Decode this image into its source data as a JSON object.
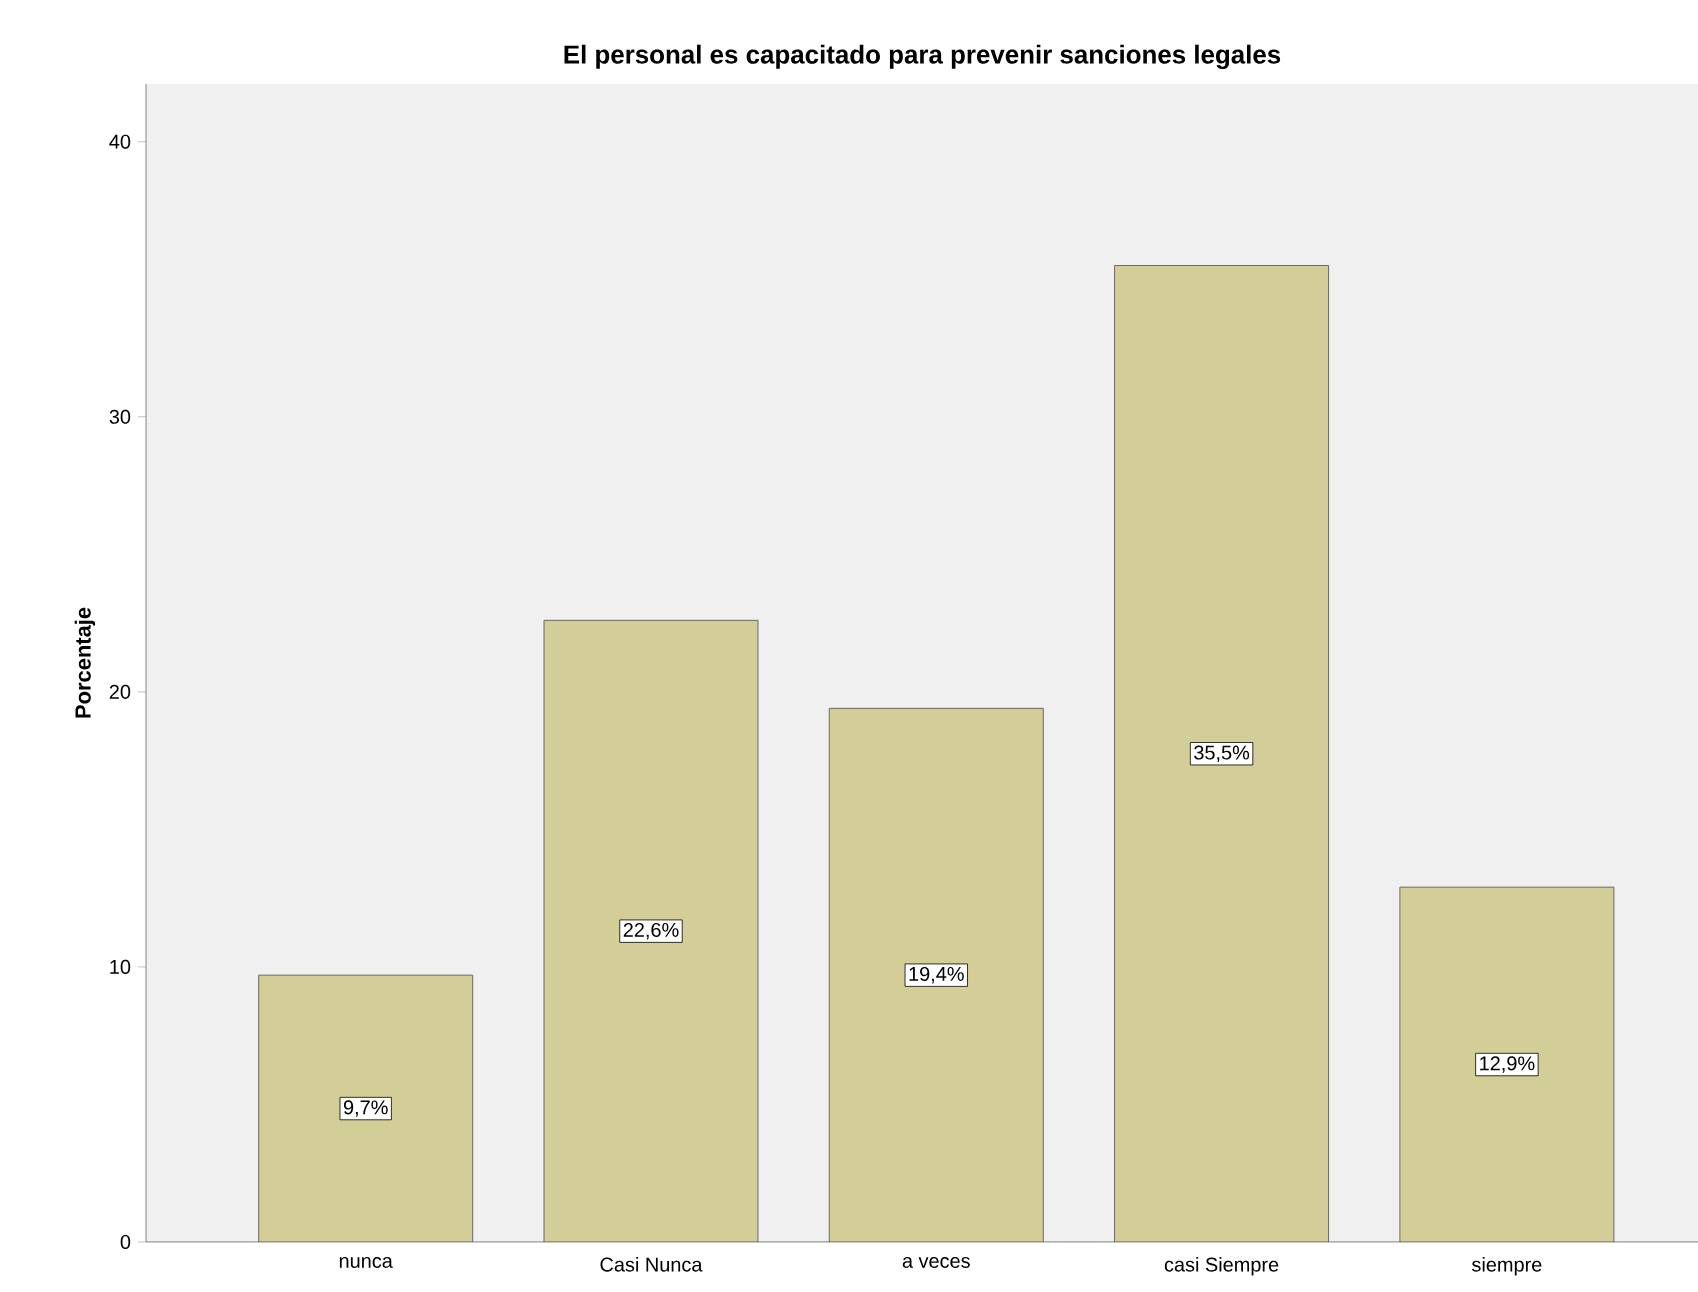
{
  "chart_data": {
    "type": "bar",
    "title": "El personal es capacitado para prevenir  sanciones legales",
    "ylabel": "Porcentaje",
    "categories": [
      "nunca",
      "Casi Nunca",
      "a  veces",
      "casi Siempre",
      "siempre"
    ],
    "values": [
      9.7,
      22.6,
      19.4,
      35.5,
      12.9
    ],
    "value_labels": [
      "9,7%",
      "22,6%",
      "19,4%",
      "35,5%",
      "12,9%"
    ],
    "color": "#d3ce97",
    "ylim": [
      0,
      42.1
    ],
    "yticks": [
      0,
      10,
      20,
      30,
      40
    ]
  }
}
